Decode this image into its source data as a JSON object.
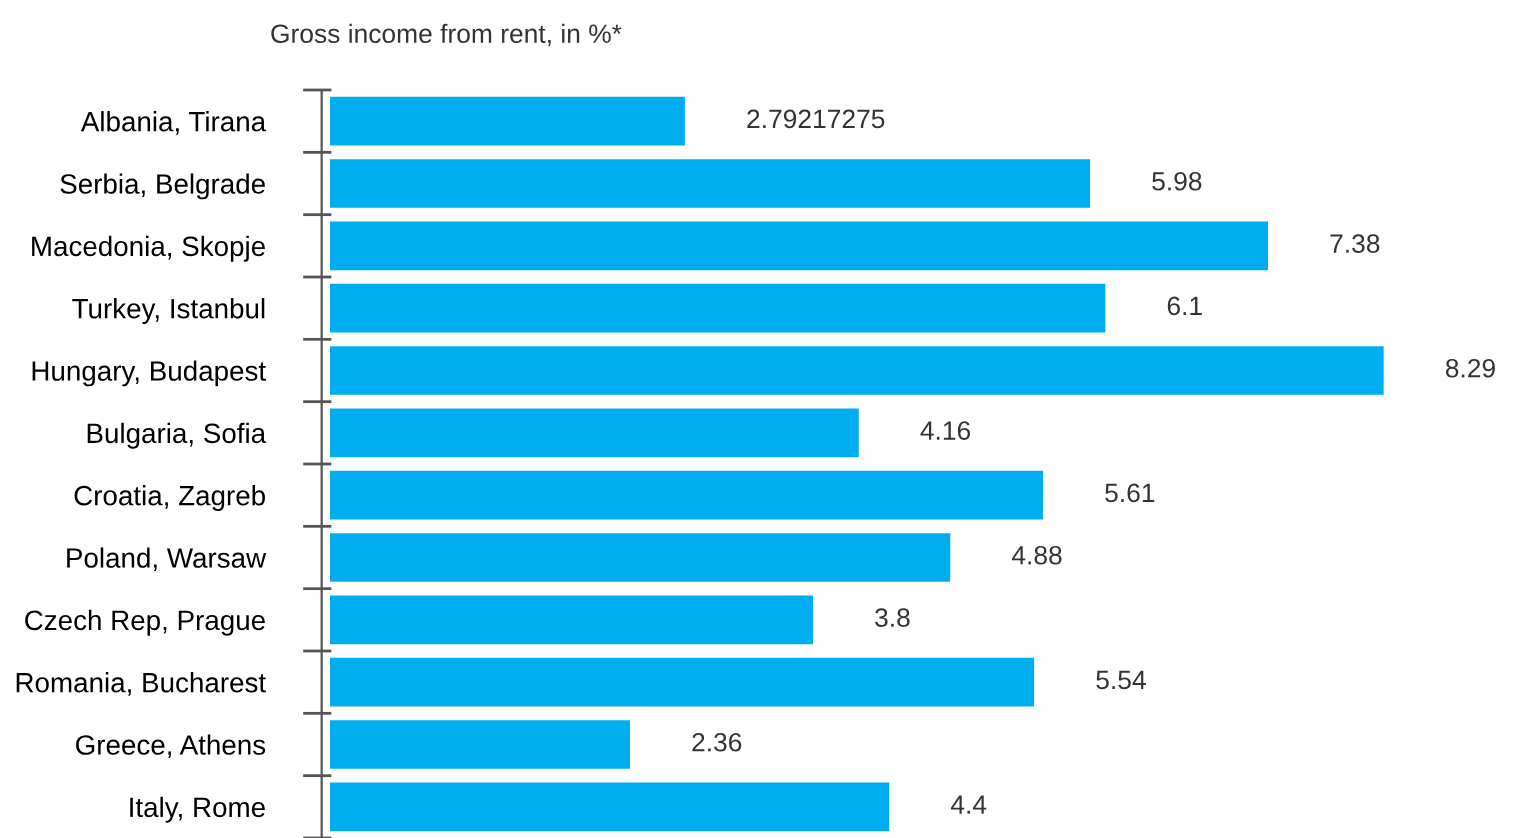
{
  "chart_data": {
    "type": "bar",
    "orientation": "horizontal",
    "title": "Gross income from rent, in %*",
    "categories": [
      "Albania, Tirana",
      "Serbia, Belgrade",
      "Macedonia, Skopje",
      "Turkey, Istanbul",
      "Hungary, Budapest",
      "Bulgaria, Sofia",
      "Croatia, Zagreb",
      "Poland, Warsaw",
      "Czech Rep, Prague",
      "Romania, Bucharest",
      "Greece, Athens",
      "Italy, Rome"
    ],
    "values": [
      2.79217275,
      5.98,
      7.38,
      6.1,
      8.29,
      4.16,
      5.61,
      4.88,
      3.8,
      5.54,
      2.36,
      4.4
    ],
    "data_labels": true,
    "color": "#00aeef",
    "grid": false,
    "legend": false
  }
}
